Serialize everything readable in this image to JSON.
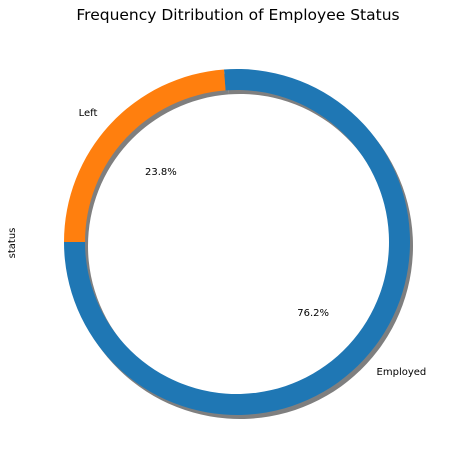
{
  "chart_data": {
    "type": "pie",
    "style": "donut",
    "title": "Frequency Ditribution of Employee Status",
    "ylabel": "status",
    "start_angle_deg": 180,
    "direction": "counterclockwise",
    "shadow": true,
    "slices": [
      {
        "label": "Employed",
        "value": 76.2,
        "pct_label": "76.2%",
        "color": "#1f77b4"
      },
      {
        "label": "Left",
        "value": 23.8,
        "pct_label": "23.8%",
        "color": "#ff7f0e"
      }
    ]
  }
}
